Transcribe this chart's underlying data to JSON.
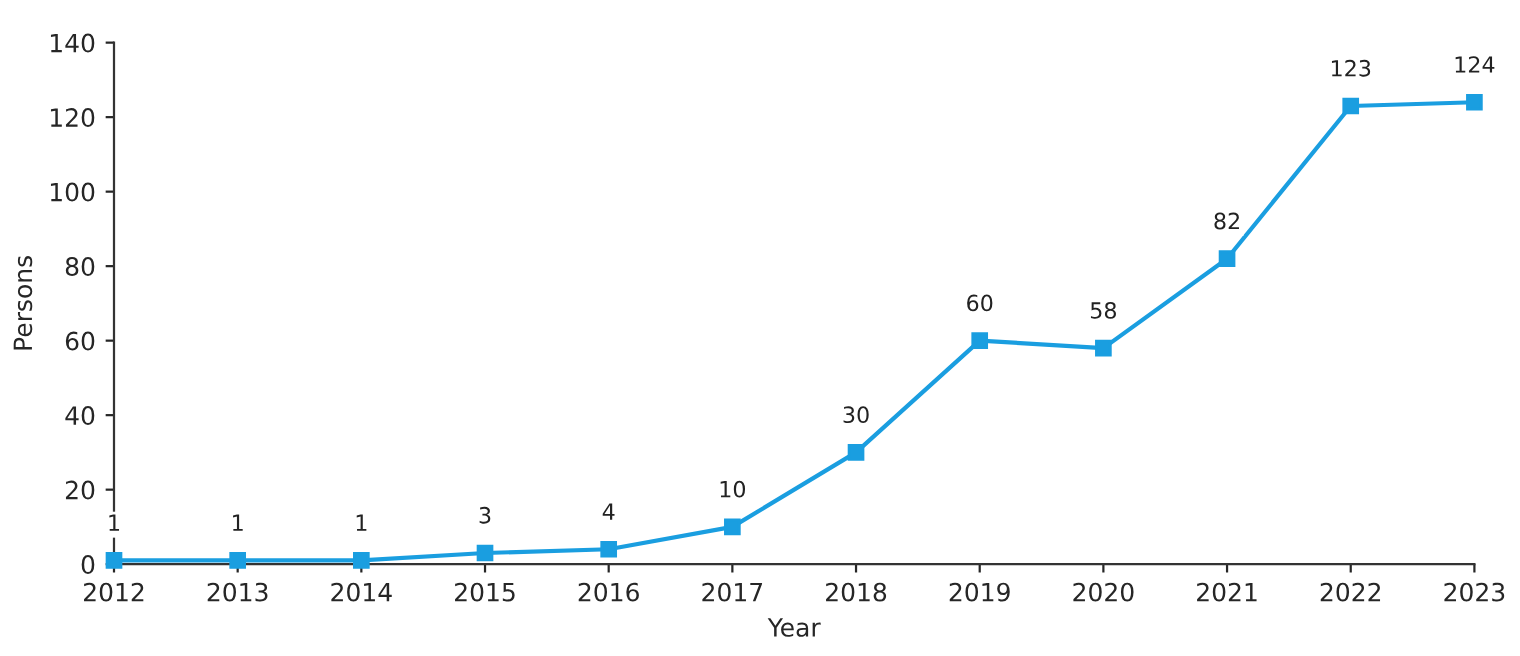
{
  "chart_data": {
    "type": "line",
    "xlabel": "Year",
    "ylabel": "Persons",
    "x": [
      2012,
      2013,
      2014,
      2015,
      2016,
      2017,
      2018,
      2019,
      2020,
      2021,
      2022,
      2023
    ],
    "series": [
      {
        "color": "#1a9ee0",
        "values": [
          1,
          1,
          1,
          3,
          4,
          10,
          30,
          60,
          58,
          82,
          123,
          124
        ]
      }
    ],
    "xlim": [
      2012,
      2023
    ],
    "xticks": [
      2012,
      2013,
      2014,
      2015,
      2016,
      2017,
      2018,
      2019,
      2020,
      2021,
      2022,
      2023
    ],
    "ylim": [
      0,
      140
    ],
    "yticks": [
      0,
      20,
      40,
      60,
      80,
      100,
      120,
      140
    ],
    "data_labels": true,
    "marker": "square",
    "line_style": "solid",
    "grid": false,
    "legend": false
  }
}
